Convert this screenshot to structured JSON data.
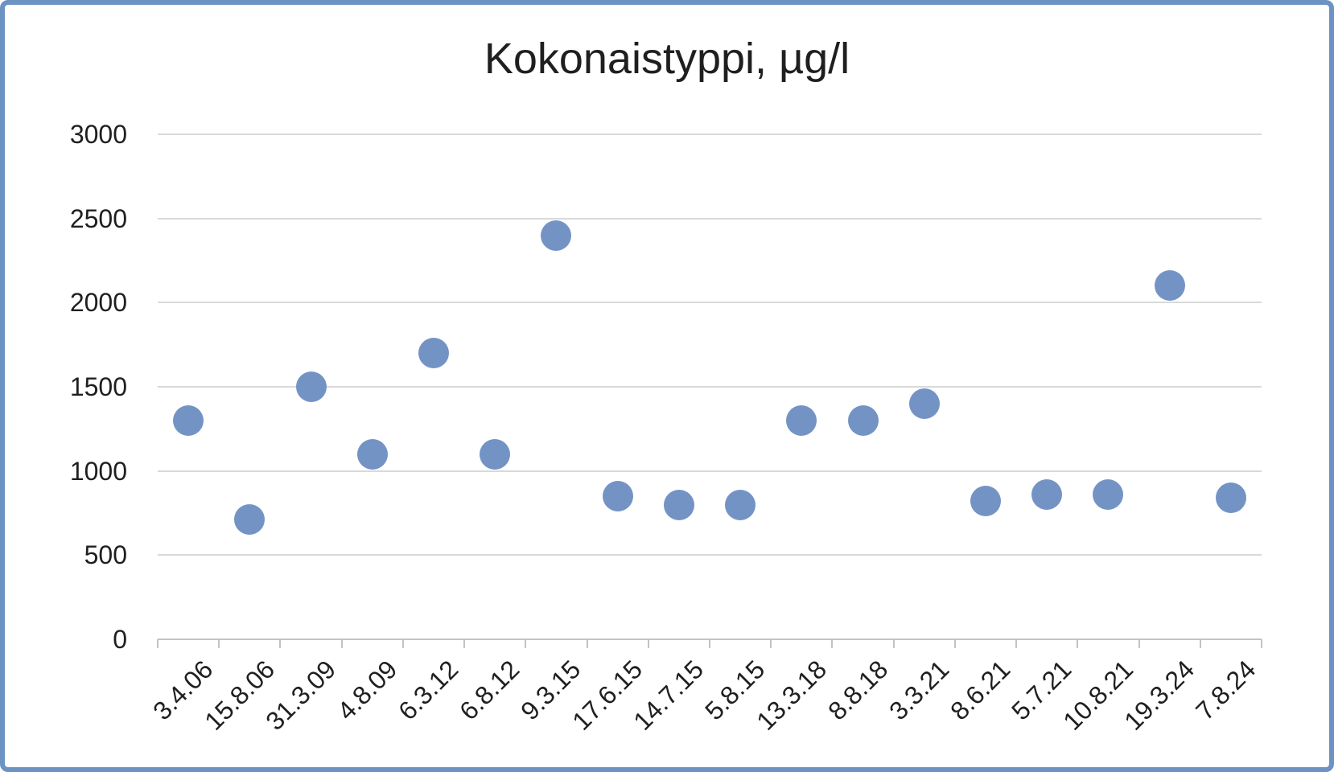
{
  "window": {
    "background": "#ffffff",
    "frame_color": "#6d92c4"
  },
  "chart_data": {
    "type": "scatter",
    "title": "Kokonaistyppi, µg/l",
    "categories": [
      "3.4.06",
      "15.8.06",
      "31.3.09",
      "4.8.09",
      "6.3.12",
      "6.8.12",
      "9.3.15",
      "17.6.15",
      "14.7.15",
      "5.8.15",
      "13.3.18",
      "8.8.18",
      "3.3.21",
      "8.6.21",
      "5.7.21",
      "10.8.21",
      "19.3.24",
      "7.8.24"
    ],
    "values": [
      1300,
      710,
      1500,
      1100,
      1700,
      1100,
      2400,
      850,
      800,
      800,
      1300,
      1300,
      1400,
      820,
      860,
      860,
      2100,
      840
    ],
    "xlabel": "",
    "ylabel": "",
    "ylim": [
      0,
      3000
    ],
    "yticks": [
      0,
      500,
      1000,
      1500,
      2000,
      2500,
      3000
    ],
    "grid": true,
    "legend": "none",
    "x_label_rotation_deg": 45,
    "marker_color": "#7493c5",
    "gridline_color": "#d9d9d9",
    "axis_line_color": "#c3c3c3",
    "text_color": "#1f1f1f"
  }
}
